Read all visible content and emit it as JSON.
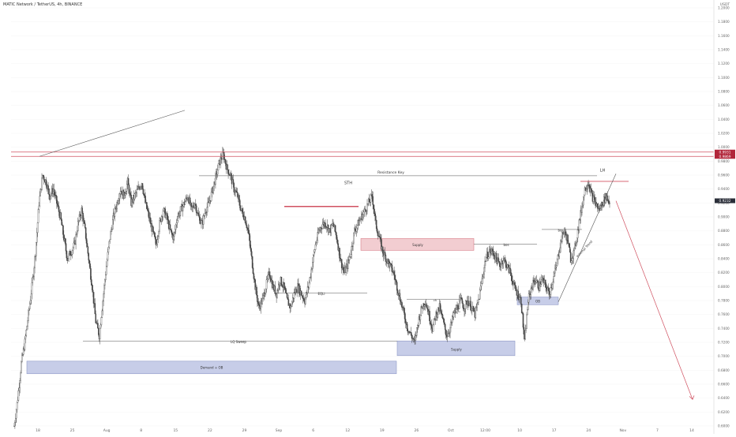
{
  "header": {
    "symbol_line": "MATIC Network / TetherUS, 4h, BINANCE"
  },
  "colors": {
    "candle": "#444444",
    "box_blue_fill": "#c7cde8",
    "box_blue_stroke": "#8f99c7",
    "box_red_fill": "#f2cdd1",
    "box_red_stroke": "#d9808a",
    "red_line": "#d05060",
    "price_badge_red": "#b2263a",
    "price_badge_dark": "#2a2e39",
    "line": "#555555"
  },
  "chart_data": {
    "type": "candlestick",
    "title": "",
    "xlabel": "",
    "ylabel": "",
    "currency_label": "USDT",
    "y_ticks": [
      "1.2000",
      "1.1800",
      "1.1600",
      "1.1400",
      "1.1200",
      "1.1000",
      "1.0800",
      "1.0600",
      "1.0400",
      "1.0200",
      "1.0000",
      "0.9800",
      "0.9600",
      "0.9400",
      "0.9200",
      "0.9000",
      "0.8800",
      "0.8600",
      "0.8400",
      "0.8200",
      "0.8000",
      "0.7800",
      "0.7600",
      "0.7400",
      "0.7200",
      "0.7000",
      "0.6800",
      "0.6600",
      "0.6400",
      "0.6200",
      "0.6000"
    ],
    "ylim": [
      0.6,
      1.2
    ],
    "x_ticks": [
      "18",
      "25",
      "Aug",
      "8",
      "15",
      "22",
      "29",
      "Sep",
      "6",
      "12",
      "19",
      "26",
      "Oct",
      "12:00",
      "10",
      "17",
      "24",
      "Nov",
      "7",
      "14"
    ],
    "price_badges": [
      {
        "value": "0.9931",
        "color": "red"
      },
      {
        "value": "0.9869",
        "color": "red"
      },
      {
        "value": "0.9232",
        "color": "dark"
      }
    ],
    "series": [
      {
        "values": [
          0.6,
          0.64,
          0.69,
          0.72,
          0.76,
          0.8,
          0.85,
          0.92,
          0.96,
          0.95,
          0.93,
          0.94,
          0.92,
          0.9,
          0.87,
          0.84,
          0.85,
          0.86,
          0.89,
          0.91,
          0.88,
          0.84,
          0.8,
          0.75,
          0.73,
          0.78,
          0.83,
          0.87,
          0.9,
          0.92,
          0.94,
          0.93,
          0.95,
          0.92,
          0.93,
          0.94,
          0.95,
          0.92,
          0.9,
          0.88,
          0.86,
          0.89,
          0.91,
          0.9,
          0.88,
          0.87,
          0.9,
          0.91,
          0.92,
          0.93,
          0.91,
          0.92,
          0.9,
          0.89,
          0.91,
          0.92,
          0.94,
          0.96,
          0.98,
          0.99,
          0.97,
          0.96,
          0.94,
          0.93,
          0.91,
          0.9,
          0.88,
          0.84,
          0.8,
          0.77,
          0.78,
          0.8,
          0.82,
          0.8,
          0.79,
          0.81,
          0.8,
          0.78,
          0.77,
          0.79,
          0.8,
          0.79,
          0.78,
          0.8,
          0.83,
          0.86,
          0.88,
          0.89,
          0.89,
          0.88,
          0.89,
          0.87,
          0.84,
          0.82,
          0.83,
          0.85,
          0.88,
          0.89,
          0.9,
          0.91,
          0.92,
          0.93,
          0.89,
          0.87,
          0.85,
          0.84,
          0.83,
          0.82,
          0.8,
          0.78,
          0.76,
          0.74,
          0.73,
          0.72,
          0.75,
          0.77,
          0.78,
          0.76,
          0.74,
          0.76,
          0.77,
          0.75,
          0.73,
          0.74,
          0.76,
          0.77,
          0.78,
          0.77,
          0.78,
          0.77,
          0.76,
          0.78,
          0.81,
          0.84,
          0.85,
          0.85,
          0.84,
          0.83,
          0.84,
          0.83,
          0.82,
          0.8,
          0.79,
          0.78,
          0.72,
          0.78,
          0.8,
          0.81,
          0.8,
          0.81,
          0.8,
          0.79,
          0.81,
          0.83,
          0.86,
          0.88,
          0.87,
          0.84,
          0.85,
          0.88,
          0.91,
          0.94,
          0.95,
          0.93,
          0.92,
          0.91,
          0.92,
          0.93,
          0.92
        ]
      }
    ],
    "annotations": [
      {
        "text": "Resistance Key"
      },
      {
        "text": "STH"
      },
      {
        "text": "LH"
      },
      {
        "text": "Supply"
      },
      {
        "text": "bos"
      },
      {
        "text": "bos"
      },
      {
        "text": "EQLi"
      },
      {
        "text": "LQ Sweep"
      },
      {
        "text": "Demand + OB"
      },
      {
        "text": "Supply"
      },
      {
        "text": "OB"
      },
      {
        "text": "Internal Trend"
      },
      {
        "text": "ch"
      },
      {
        "text": "ch"
      }
    ]
  }
}
